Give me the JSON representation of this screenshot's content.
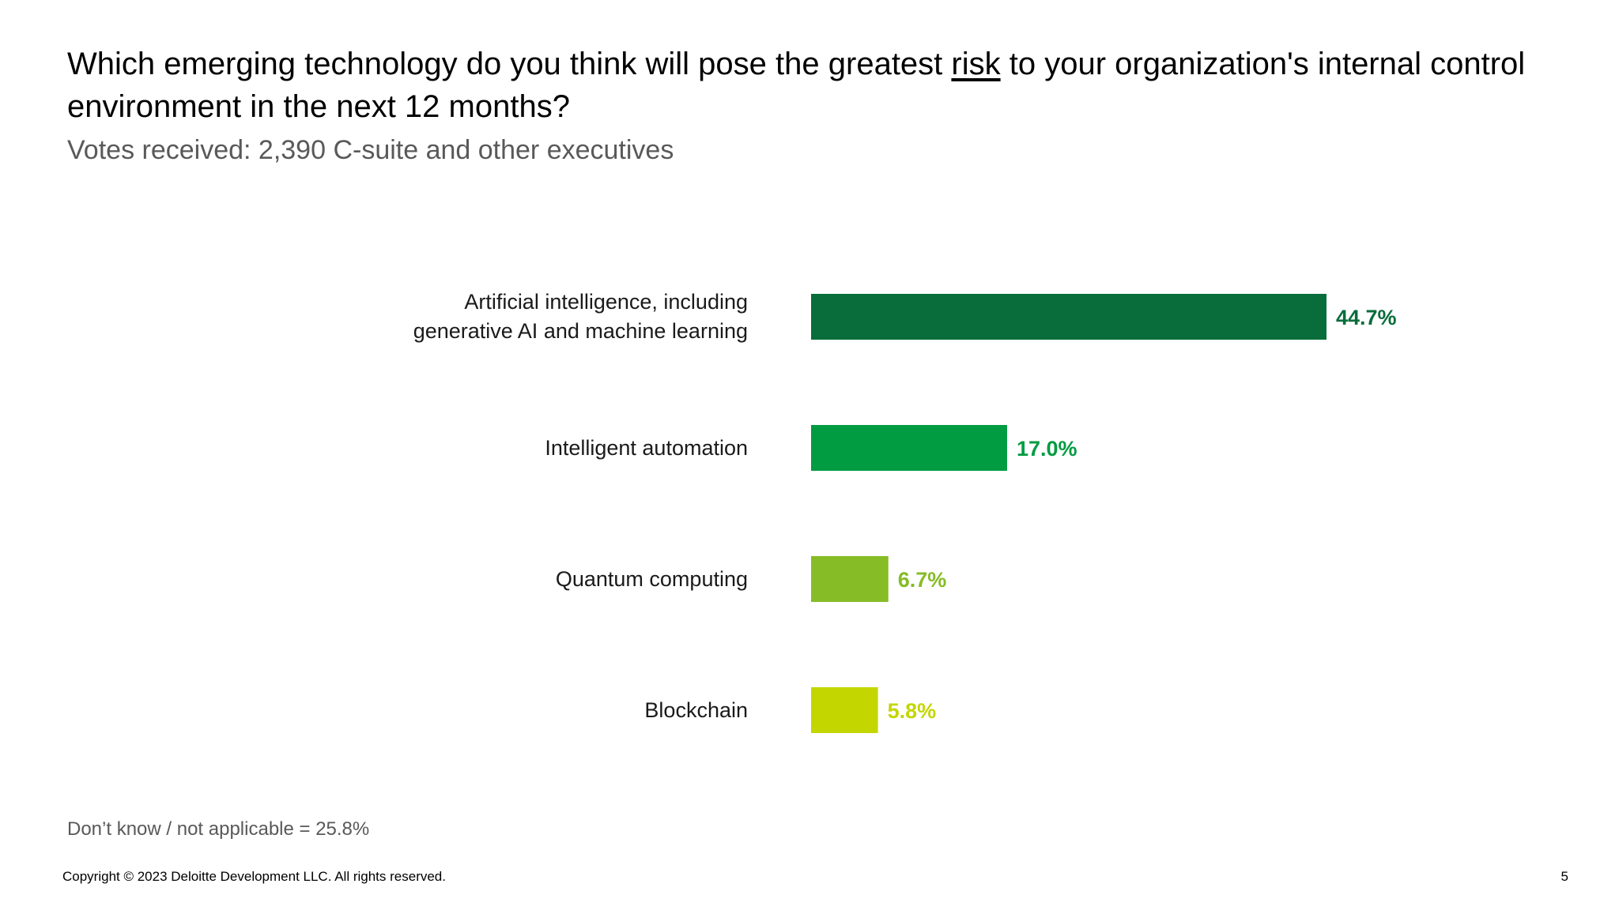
{
  "title_parts": {
    "before": "Which emerging technology do you think will pose the greatest ",
    "emphasis": "risk",
    "after": " to your organization's internal control environment in the next 12 months?"
  },
  "subtitle": "Votes received: 2,390 C-suite and other executives",
  "chart_data": {
    "type": "bar",
    "orientation": "horizontal",
    "categories": [
      [
        "Artificial intelligence, including",
        "generative AI and machine learning"
      ],
      [
        "Intelligent automation"
      ],
      [
        "Quantum computing"
      ],
      [
        "Blockchain"
      ]
    ],
    "values": [
      44.7,
      17.0,
      6.7,
      5.8
    ],
    "value_labels": [
      "44.7%",
      "17.0%",
      "6.7%",
      "5.8%"
    ],
    "colors": [
      "#086D3B",
      "#019B41",
      "#86BC25",
      "#C4D600"
    ],
    "xlim": [
      0,
      44.7
    ],
    "grid": false,
    "legend": "none"
  },
  "footnote": "Don’t know / not applicable = 25.8%",
  "copyright": "Copyright © 2023 Deloitte Development LLC. All rights reserved.",
  "page_number": "5"
}
